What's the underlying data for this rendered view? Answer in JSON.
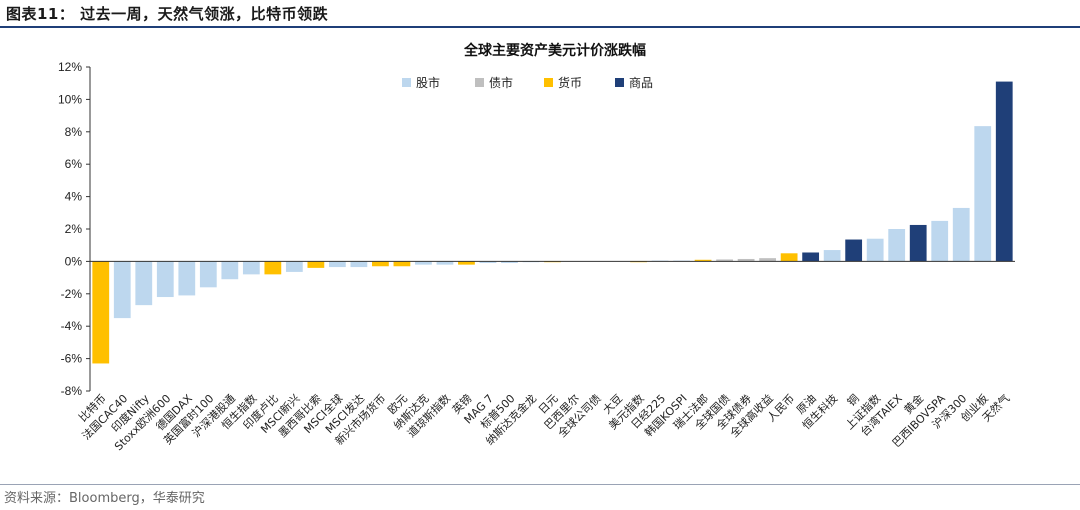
{
  "figure_title": "图表11：  过去一周，天然气领涨，比特币领跌",
  "source": "资料来源：Bloomberg，华泰研究",
  "colors": {
    "股市": "#bdd7ee",
    "债市": "#bfbfbf",
    "货币": "#ffc000",
    "商品": "#1f3f78"
  },
  "chart_data": {
    "type": "bar",
    "title": "全球主要资产美元计价涨跌幅",
    "xlabel": "",
    "ylabel": "",
    "ylim": [
      -8,
      12
    ],
    "yticks": [
      "12%",
      "10%",
      "8%",
      "6%",
      "4%",
      "2%",
      "0%",
      "-2%",
      "-4%",
      "-6%",
      "-8%"
    ],
    "grid": false,
    "legend_position": "top",
    "legend": [
      "股市",
      "债市",
      "货币",
      "商品"
    ],
    "categories": [
      "比特币",
      "法国CAC40",
      "印度Nifty",
      "Stoxx欧洲600",
      "德国DAX",
      "英国富时100",
      "沪深港股通",
      "恒生指数",
      "印度卢比",
      "MSCI新兴",
      "墨西哥比索",
      "MSCI全球",
      "MSCI发达",
      "新兴市场货币",
      "欧元",
      "纳斯达克",
      "道琼斯指数",
      "英镑",
      "MAG 7",
      "标普500",
      "纳斯达克金龙",
      "日元",
      "巴西里尔",
      "全球公司债",
      "大豆",
      "美元指数",
      "日经225",
      "韩国KOSPI",
      "瑞士法郎",
      "全球国债",
      "全球债券",
      "全球高收益",
      "人民币",
      "原油",
      "恒生科技",
      "铜",
      "上证指数",
      "台湾TAIEX",
      "黄金",
      "巴西IBOVSPA",
      "沪深300",
      "创业板",
      "天然气"
    ],
    "groups": [
      "货币",
      "股市",
      "股市",
      "股市",
      "股市",
      "股市",
      "股市",
      "股市",
      "货币",
      "股市",
      "货币",
      "股市",
      "股市",
      "货币",
      "货币",
      "股市",
      "股市",
      "货币",
      "股市",
      "股市",
      "股市",
      "货币",
      "货币",
      "债市",
      "商品",
      "货币",
      "股市",
      "股市",
      "货币",
      "债市",
      "债市",
      "债市",
      "货币",
      "商品",
      "股市",
      "商品",
      "股市",
      "股市",
      "商品",
      "股市",
      "股市",
      "股市",
      "商品"
    ],
    "values": [
      -6.3,
      -3.5,
      -2.7,
      -2.2,
      -2.1,
      -1.6,
      -1.1,
      -0.8,
      -0.8,
      -0.65,
      -0.4,
      -0.35,
      -0.35,
      -0.3,
      -0.3,
      -0.2,
      -0.2,
      -0.2,
      -0.1,
      -0.1,
      -0.05,
      -0.05,
      0.0,
      0.0,
      0.0,
      -0.05,
      0.05,
      0.05,
      0.1,
      0.12,
      0.15,
      0.2,
      0.5,
      0.55,
      0.7,
      1.35,
      1.4,
      2.0,
      2.25,
      2.5,
      3.3,
      8.35,
      11.1
    ]
  }
}
